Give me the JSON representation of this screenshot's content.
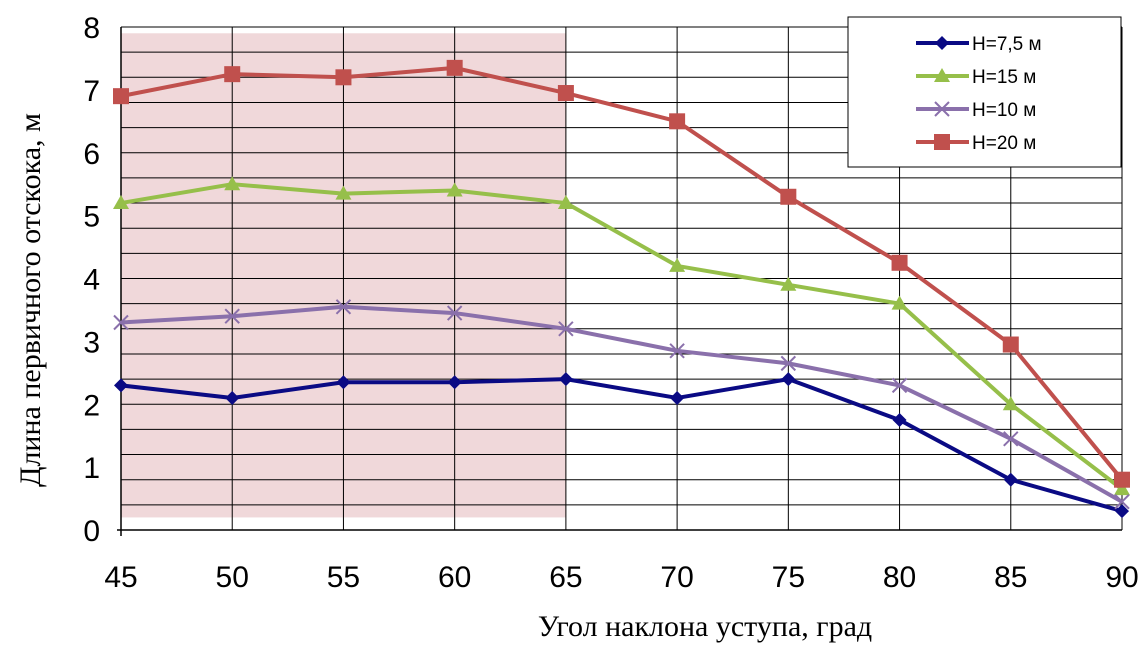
{
  "chart_data": {
    "type": "line",
    "xlabel": "Угол наклона уступа, град",
    "ylabel": "Длина  первичного отскока, м",
    "x": [
      45,
      50,
      55,
      60,
      65,
      70,
      75,
      80,
      85,
      90
    ],
    "xlim": [
      45,
      90
    ],
    "ylim": [
      0,
      8
    ],
    "y_major_ticks": [
      0,
      1,
      2,
      3,
      4,
      5,
      6,
      7,
      8
    ],
    "y_gridline_step": 0.4,
    "grid": true,
    "legend_position": "top-right",
    "highlight_region": {
      "x": [
        45,
        65
      ],
      "y": [
        0.2,
        7.9
      ],
      "color": "#f0d8da"
    },
    "series": [
      {
        "name": "H=7,5 м",
        "color": "#0a0a84",
        "marker": "diamond",
        "values": [
          2.3,
          2.1,
          2.35,
          2.35,
          2.4,
          2.1,
          2.4,
          1.75,
          0.8,
          0.3
        ]
      },
      {
        "name": "H=15 м",
        "color": "#96bf4a",
        "marker": "triangle",
        "values": [
          5.2,
          5.5,
          5.35,
          5.4,
          5.2,
          4.2,
          3.9,
          3.6,
          2.0,
          0.65
        ]
      },
      {
        "name": "H=10 м",
        "color": "#8a70ab",
        "marker": "x",
        "values": [
          3.3,
          3.4,
          3.55,
          3.45,
          3.2,
          2.85,
          2.65,
          2.3,
          1.45,
          0.45
        ]
      },
      {
        "name": "H=20 м",
        "color": "#c0504d",
        "marker": "square",
        "values": [
          6.9,
          7.25,
          7.2,
          7.35,
          6.95,
          6.5,
          5.3,
          4.25,
          2.95,
          0.8
        ]
      }
    ]
  }
}
